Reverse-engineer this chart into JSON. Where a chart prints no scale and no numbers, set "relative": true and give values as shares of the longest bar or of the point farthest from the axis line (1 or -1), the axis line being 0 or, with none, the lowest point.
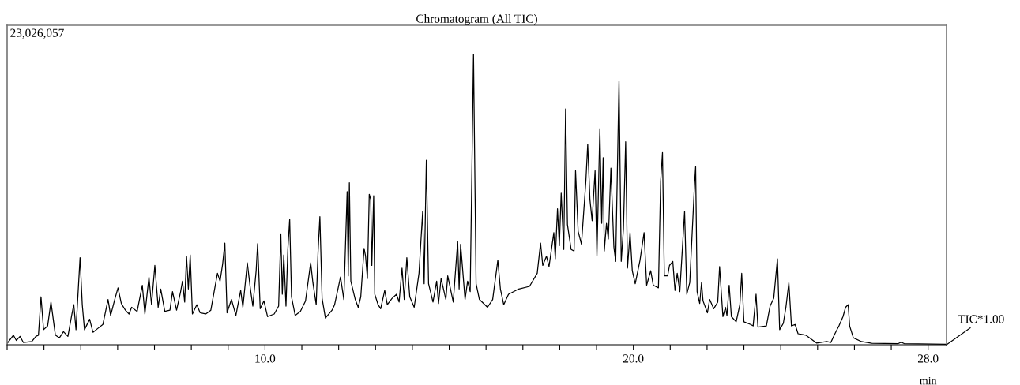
{
  "chart_data": {
    "type": "line",
    "title": "Chromatogram (All TIC)",
    "xlabel": "min",
    "relative": true,
    "grid": false,
    "legend": false,
    "marker": "none",
    "line_style": "solid",
    "annotations": [
      "23,026,057",
      "TIC*1.00"
    ],
    "xlim": [
      3.0,
      28.5
    ],
    "xticks": [
      {
        "value": 3,
        "label": null
      },
      {
        "value": 4,
        "label": null
      },
      {
        "value": 5,
        "label": null
      },
      {
        "value": 6,
        "label": null
      },
      {
        "value": 7,
        "label": null
      },
      {
        "value": 8,
        "label": null
      },
      {
        "value": 9,
        "label": null
      },
      {
        "value": 10,
        "label": "10.0"
      },
      {
        "value": 11,
        "label": null
      },
      {
        "value": 12,
        "label": null
      },
      {
        "value": 13,
        "label": null
      },
      {
        "value": 14,
        "label": null
      },
      {
        "value": 15,
        "label": null
      },
      {
        "value": 16,
        "label": null
      },
      {
        "value": 17,
        "label": null
      },
      {
        "value": 18,
        "label": null
      },
      {
        "value": 19,
        "label": null
      },
      {
        "value": 20,
        "label": "20.0"
      },
      {
        "value": 21,
        "label": null
      },
      {
        "value": 22,
        "label": null
      },
      {
        "value": 23,
        "label": null
      },
      {
        "value": 24,
        "label": null
      },
      {
        "value": 25,
        "label": null
      },
      {
        "value": 26,
        "label": null
      },
      {
        "value": 27,
        "label": null
      },
      {
        "value": 28,
        "label": "28.0"
      }
    ],
    "series": [
      {
        "color": "#000000",
        "x": [
          3.01,
          3.17,
          3.25,
          3.35,
          3.44,
          3.67,
          3.78,
          3.85,
          3.92,
          3.99,
          4.1,
          4.19,
          4.31,
          4.42,
          4.53,
          4.65,
          4.76,
          4.81,
          4.87,
          4.98,
          5.04,
          5.1,
          5.24,
          5.33,
          5.46,
          5.6,
          5.74,
          5.81,
          5.93,
          6.01,
          6.1,
          6.21,
          6.31,
          6.38,
          6.53,
          6.67,
          6.74,
          6.85,
          6.92,
          7.01,
          7.1,
          7.17,
          7.28,
          7.42,
          7.49,
          7.6,
          7.71,
          7.76,
          7.82,
          7.87,
          7.92,
          7.97,
          8.03,
          8.15,
          8.24,
          8.39,
          8.53,
          8.62,
          8.71,
          8.78,
          8.85,
          8.91,
          8.97,
          9.09,
          9.21,
          9.34,
          9.4,
          9.52,
          9.6,
          9.67,
          9.76,
          9.8,
          9.87,
          9.97,
          10.07,
          10.25,
          10.37,
          10.43,
          10.47,
          10.51,
          10.57,
          10.62,
          10.67,
          10.72,
          10.82,
          10.96,
          11.1,
          11.24,
          11.3,
          11.39,
          11.44,
          11.49,
          11.55,
          11.64,
          11.82,
          11.89,
          12.05,
          12.14,
          12.23,
          12.26,
          12.29,
          12.33,
          12.45,
          12.53,
          12.6,
          12.69,
          12.73,
          12.78,
          12.83,
          12.87,
          12.9,
          12.95,
          12.98,
          13.07,
          13.14,
          13.25,
          13.32,
          13.45,
          13.57,
          13.64,
          13.72,
          13.78,
          13.85,
          13.93,
          14.05,
          14.18,
          14.28,
          14.32,
          14.38,
          14.44,
          14.56,
          14.66,
          14.71,
          14.78,
          14.91,
          14.96,
          15.11,
          15.23,
          15.27,
          15.31,
          15.43,
          15.5,
          15.57,
          15.66,
          15.73,
          15.82,
          16.04,
          16.18,
          16.32,
          16.39,
          16.48,
          16.61,
          16.89,
          17.18,
          17.39,
          17.48,
          17.54,
          17.64,
          17.71,
          17.84,
          17.88,
          17.94,
          17.99,
          18.04,
          18.11,
          18.16,
          18.21,
          18.31,
          18.39,
          18.43,
          18.5,
          18.59,
          18.71,
          18.76,
          18.82,
          18.88,
          18.96,
          19.01,
          19.09,
          19.14,
          19.18,
          19.21,
          19.27,
          19.32,
          19.39,
          19.47,
          19.52,
          19.61,
          19.67,
          19.73,
          19.79,
          19.84,
          19.91,
          19.97,
          20.05,
          20.18,
          20.29,
          20.36,
          20.47,
          20.54,
          20.68,
          20.74,
          20.79,
          20.84,
          20.93,
          20.98,
          21.07,
          21.13,
          21.19,
          21.26,
          21.39,
          21.45,
          21.53,
          21.66,
          21.69,
          21.73,
          21.8,
          21.85,
          21.89,
          22.01,
          22.07,
          22.18,
          22.29,
          22.34,
          22.43,
          22.5,
          22.54,
          22.6,
          22.66,
          22.79,
          22.89,
          22.94,
          23.0,
          23.18,
          23.25,
          23.33,
          23.38,
          23.61,
          23.71,
          23.81,
          23.91,
          23.97,
          24.07,
          24.14,
          24.22,
          24.29,
          24.39,
          24.47,
          24.68,
          24.97,
          25.25,
          25.36,
          25.47,
          25.58,
          25.69,
          25.76,
          25.83,
          25.87,
          25.97,
          26.19,
          26.47,
          27.19,
          27.27,
          27.35,
          28.47
        ],
        "values": [
          0.006,
          0.033,
          0.015,
          0.029,
          0.008,
          0.011,
          0.029,
          0.033,
          0.165,
          0.052,
          0.065,
          0.147,
          0.033,
          0.024,
          0.045,
          0.029,
          0.106,
          0.138,
          0.052,
          0.3,
          0.138,
          0.052,
          0.088,
          0.043,
          0.056,
          0.07,
          0.156,
          0.101,
          0.16,
          0.196,
          0.142,
          0.119,
          0.106,
          0.129,
          0.115,
          0.205,
          0.106,
          0.233,
          0.138,
          0.273,
          0.129,
          0.192,
          0.115,
          0.119,
          0.183,
          0.119,
          0.183,
          0.219,
          0.147,
          0.305,
          0.192,
          0.309,
          0.106,
          0.138,
          0.11,
          0.106,
          0.119,
          0.183,
          0.246,
          0.219,
          0.278,
          0.35,
          0.11,
          0.156,
          0.101,
          0.187,
          0.129,
          0.282,
          0.196,
          0.133,
          0.255,
          0.348,
          0.124,
          0.151,
          0.097,
          0.106,
          0.133,
          0.382,
          0.174,
          0.309,
          0.133,
          0.328,
          0.432,
          0.165,
          0.101,
          0.115,
          0.151,
          0.282,
          0.214,
          0.138,
          0.319,
          0.441,
          0.16,
          0.092,
          0.119,
          0.138,
          0.233,
          0.156,
          0.527,
          0.237,
          0.558,
          0.219,
          0.156,
          0.129,
          0.165,
          0.332,
          0.305,
          0.228,
          0.518,
          0.5,
          0.273,
          0.513,
          0.174,
          0.138,
          0.124,
          0.187,
          0.138,
          0.16,
          0.174,
          0.147,
          0.264,
          0.156,
          0.3,
          0.165,
          0.129,
          0.246,
          0.459,
          0.21,
          0.635,
          0.21,
          0.147,
          0.219,
          0.142,
          0.228,
          0.156,
          0.237,
          0.147,
          0.355,
          0.192,
          0.346,
          0.156,
          0.219,
          0.183,
          1.0,
          0.21,
          0.156,
          0.129,
          0.156,
          0.291,
          0.192,
          0.138,
          0.174,
          0.192,
          0.201,
          0.246,
          0.35,
          0.273,
          0.305,
          0.269,
          0.386,
          0.296,
          0.468,
          0.341,
          0.522,
          0.328,
          0.812,
          0.414,
          0.328,
          0.323,
          0.599,
          0.391,
          0.346,
          0.563,
          0.69,
          0.5,
          0.427,
          0.599,
          0.305,
          0.744,
          0.418,
          0.644,
          0.323,
          0.418,
          0.364,
          0.608,
          0.337,
          0.287,
          0.907,
          0.287,
          0.4,
          0.699,
          0.264,
          0.386,
          0.255,
          0.21,
          0.291,
          0.386,
          0.205,
          0.255,
          0.205,
          0.196,
          0.563,
          0.662,
          0.237,
          0.237,
          0.273,
          0.287,
          0.187,
          0.246,
          0.183,
          0.459,
          0.174,
          0.214,
          0.554,
          0.613,
          0.183,
          0.142,
          0.214,
          0.151,
          0.11,
          0.156,
          0.124,
          0.147,
          0.269,
          0.097,
          0.129,
          0.101,
          0.205,
          0.097,
          0.079,
          0.138,
          0.246,
          0.079,
          0.07,
          0.065,
          0.174,
          0.061,
          0.065,
          0.133,
          0.16,
          0.296,
          0.052,
          0.074,
          0.129,
          0.214,
          0.065,
          0.07,
          0.038,
          0.033,
          0.006,
          0.011,
          0.008,
          0.038,
          0.065,
          0.097,
          0.129,
          0.138,
          0.065,
          0.024,
          0.011,
          0.005,
          0.004,
          0.009,
          0.004,
          0.002
        ]
      }
    ]
  }
}
